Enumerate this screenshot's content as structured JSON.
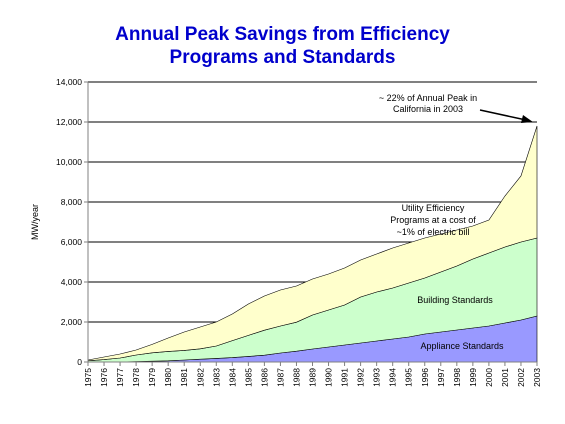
{
  "title_line1": "Annual Peak Savings from Efficiency",
  "title_line2": "Programs and Standards",
  "colors": {
    "title": "#0000cc",
    "appliance": "#9999ff",
    "building": "#ccffcc",
    "utility": "#ffffcc",
    "gridline": "#000000"
  },
  "chart_data": {
    "type": "area",
    "stacked": true,
    "ylabel": "MW/year",
    "xlabel": "",
    "ylim": [
      0,
      14000
    ],
    "yticks": [
      "0",
      "2,000",
      "4,000",
      "6,000",
      "8,000",
      "10,000",
      "12,000",
      "14,000"
    ],
    "grid": "horizontal",
    "x": [
      "1975",
      "1976",
      "1977",
      "1978",
      "1979",
      "1980",
      "1981",
      "1982",
      "1983",
      "1984",
      "1985",
      "1986",
      "1987",
      "1988",
      "1989",
      "1990",
      "1991",
      "1992",
      "1993",
      "1994",
      "1995",
      "1996",
      "1997",
      "1998",
      "1999",
      "2000",
      "2001",
      "2002",
      "2003"
    ],
    "series": [
      {
        "name": "Appliance Standards",
        "color": "#9999ff",
        "values": [
          0,
          0,
          0,
          20,
          40,
          60,
          100,
          140,
          180,
          220,
          280,
          340,
          450,
          540,
          650,
          750,
          850,
          950,
          1050,
          1150,
          1250,
          1400,
          1500,
          1600,
          1700,
          1800,
          1950,
          2100,
          2300
        ]
      },
      {
        "name": "Building Standards",
        "color": "#ccffcc",
        "values": [
          60,
          120,
          200,
          330,
          420,
          470,
          480,
          520,
          620,
          850,
          1050,
          1250,
          1350,
          1450,
          1700,
          1850,
          2000,
          2300,
          2450,
          2550,
          2700,
          2800,
          3000,
          3200,
          3450,
          3650,
          3800,
          3900,
          3900
        ]
      },
      {
        "name": "Utility Efficiency Programs at a cost of ~1% of electric bill",
        "color": "#ffffcc",
        "values": [
          40,
          130,
          200,
          250,
          420,
          670,
          920,
          1090,
          1200,
          1330,
          1570,
          1710,
          1800,
          1810,
          1800,
          1800,
          1850,
          1850,
          1900,
          2000,
          2000,
          2000,
          1900,
          1800,
          1650,
          1650,
          2550,
          3300,
          5600
        ]
      }
    ],
    "series_labels": [
      {
        "lines": [
          "Appliance Standards"
        ]
      },
      {
        "lines": [
          "Building Standards"
        ]
      },
      {
        "lines": [
          "Utility Efficiency",
          "Programs at a cost of",
          "~1% of electric bill"
        ]
      }
    ],
    "annotation": {
      "lines": [
        "~ 22% of Annual Peak in",
        "California in 2003"
      ]
    }
  }
}
